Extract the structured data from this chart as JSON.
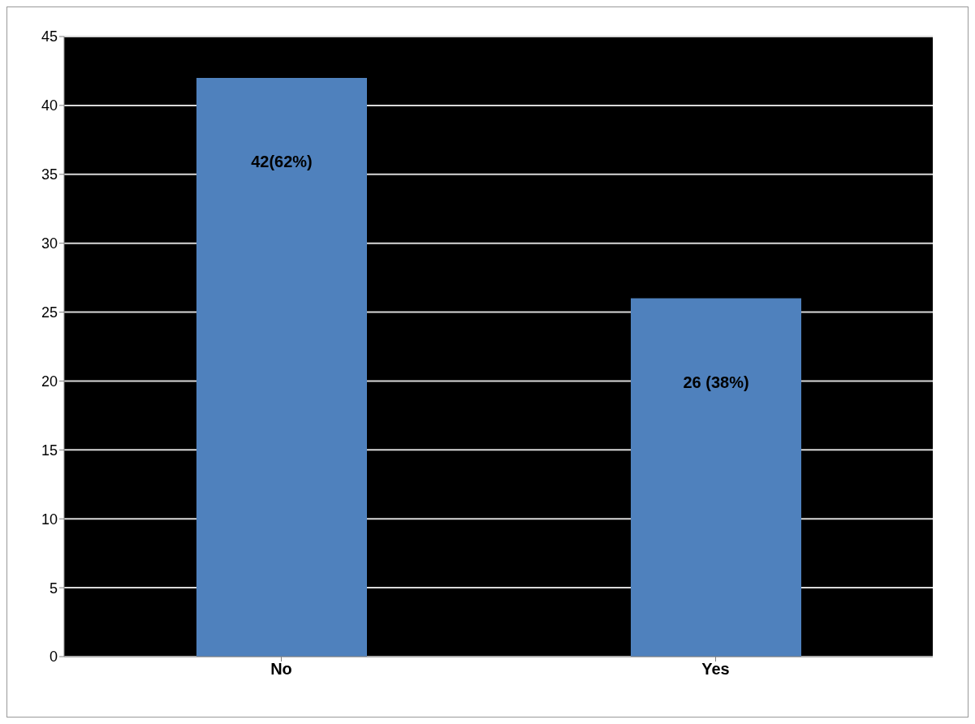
{
  "chart_data": {
    "type": "bar",
    "categories": [
      "No",
      "Yes"
    ],
    "series": [
      {
        "color": "#4f81bd",
        "values": [
          42,
          26
        ],
        "value_labels": [
          "42(62%)",
          "26 (38%)"
        ]
      }
    ],
    "ylim": [
      0,
      45
    ],
    "yticks": [
      0,
      5,
      10,
      15,
      20,
      25,
      30,
      35,
      40,
      45
    ],
    "grid": "y"
  }
}
